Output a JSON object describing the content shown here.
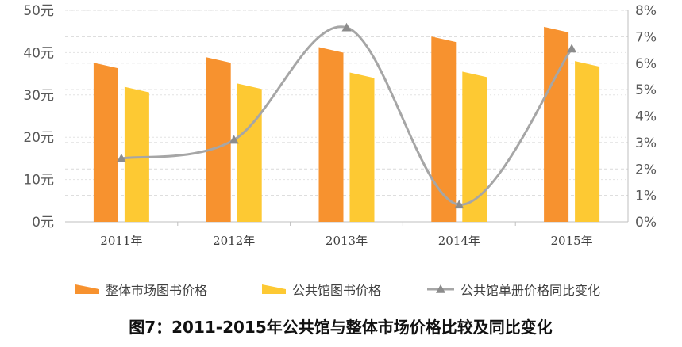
{
  "chart_data": {
    "type": "bar",
    "title": "图7：2011-2015年公共馆与整体市场价格比较及同比变化",
    "categories": [
      "2011年",
      "2012年",
      "2013年",
      "2014年",
      "2015年"
    ],
    "series": [
      {
        "name": "整体市场图书价格",
        "type": "bar",
        "axis": "left",
        "color": "#F7922F",
        "values": [
          37.6,
          38.9,
          41.3,
          43.8,
          46.1
        ]
      },
      {
        "name": "公共馆图书价格",
        "type": "bar",
        "axis": "left",
        "color": "#FDC933",
        "values": [
          31.9,
          32.7,
          35.3,
          35.5,
          38.0
        ]
      },
      {
        "name": "公共馆单册价格同比变化",
        "type": "line",
        "axis": "right",
        "color": "#A6A6A6",
        "values": [
          0.024,
          0.031,
          0.0735,
          0.0065,
          0.0655
        ]
      }
    ],
    "y_left": {
      "ticks": [
        "0元",
        "10元",
        "20元",
        "30元",
        "40元",
        "50元"
      ],
      "min": 0,
      "max": 50
    },
    "y_right": {
      "ticks": [
        "0%",
        "1%",
        "2%",
        "3%",
        "4%",
        "5%",
        "6%",
        "7%",
        "8%"
      ],
      "min": 0,
      "max": 0.08
    },
    "grid": true,
    "legend_position": "bottom"
  }
}
